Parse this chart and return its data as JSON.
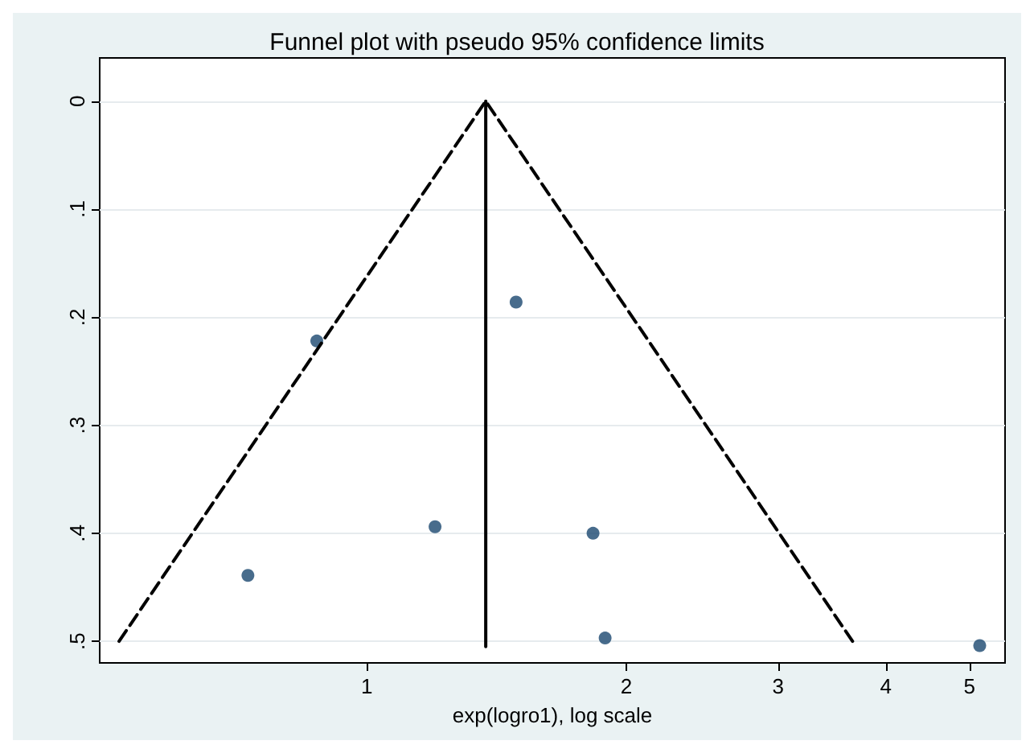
{
  "chart_data": {
    "type": "scatter",
    "title": "Funnel plot with pseudo 95% confidence limits",
    "xlabel": "exp(logro1), log scale",
    "log": "x",
    "xlim": [
      0.49,
      5.5
    ],
    "xticks": [
      1,
      2,
      3,
      4,
      5
    ],
    "ylim": [
      0.52,
      -0.04
    ],
    "yticks": [
      0,
      {
        "value": 0.1,
        "label": ".1"
      },
      {
        "value": 0.2,
        "label": ".2"
      },
      {
        "value": 0.3,
        "label": ".3"
      },
      {
        "value": 0.4,
        "label": ".4"
      },
      {
        "value": 0.5,
        "label": ".5"
      }
    ],
    "grid": "y",
    "series": [
      {
        "type": "scatter",
        "marker": "circle",
        "color": "#1a476f",
        "x": [
          0.875,
          1.49,
          1.2,
          1.83,
          0.728,
          1.89,
          5.14
        ],
        "values": [
          0.222,
          0.186,
          0.394,
          0.4,
          0.439,
          0.497,
          0.504
        ]
      },
      {
        "type": "line",
        "marker": "none",
        "line_style": "dashed",
        "color": "#000000",
        "x": [
          0.516,
          1.374,
          3.66
        ],
        "values": [
          0.5,
          0,
          0.5
        ]
      },
      {
        "type": "line",
        "marker": "none",
        "line_style": "solid",
        "color": "#000000",
        "x": [
          1.374,
          1.374
        ],
        "values": [
          0,
          0.505
        ]
      }
    ]
  }
}
